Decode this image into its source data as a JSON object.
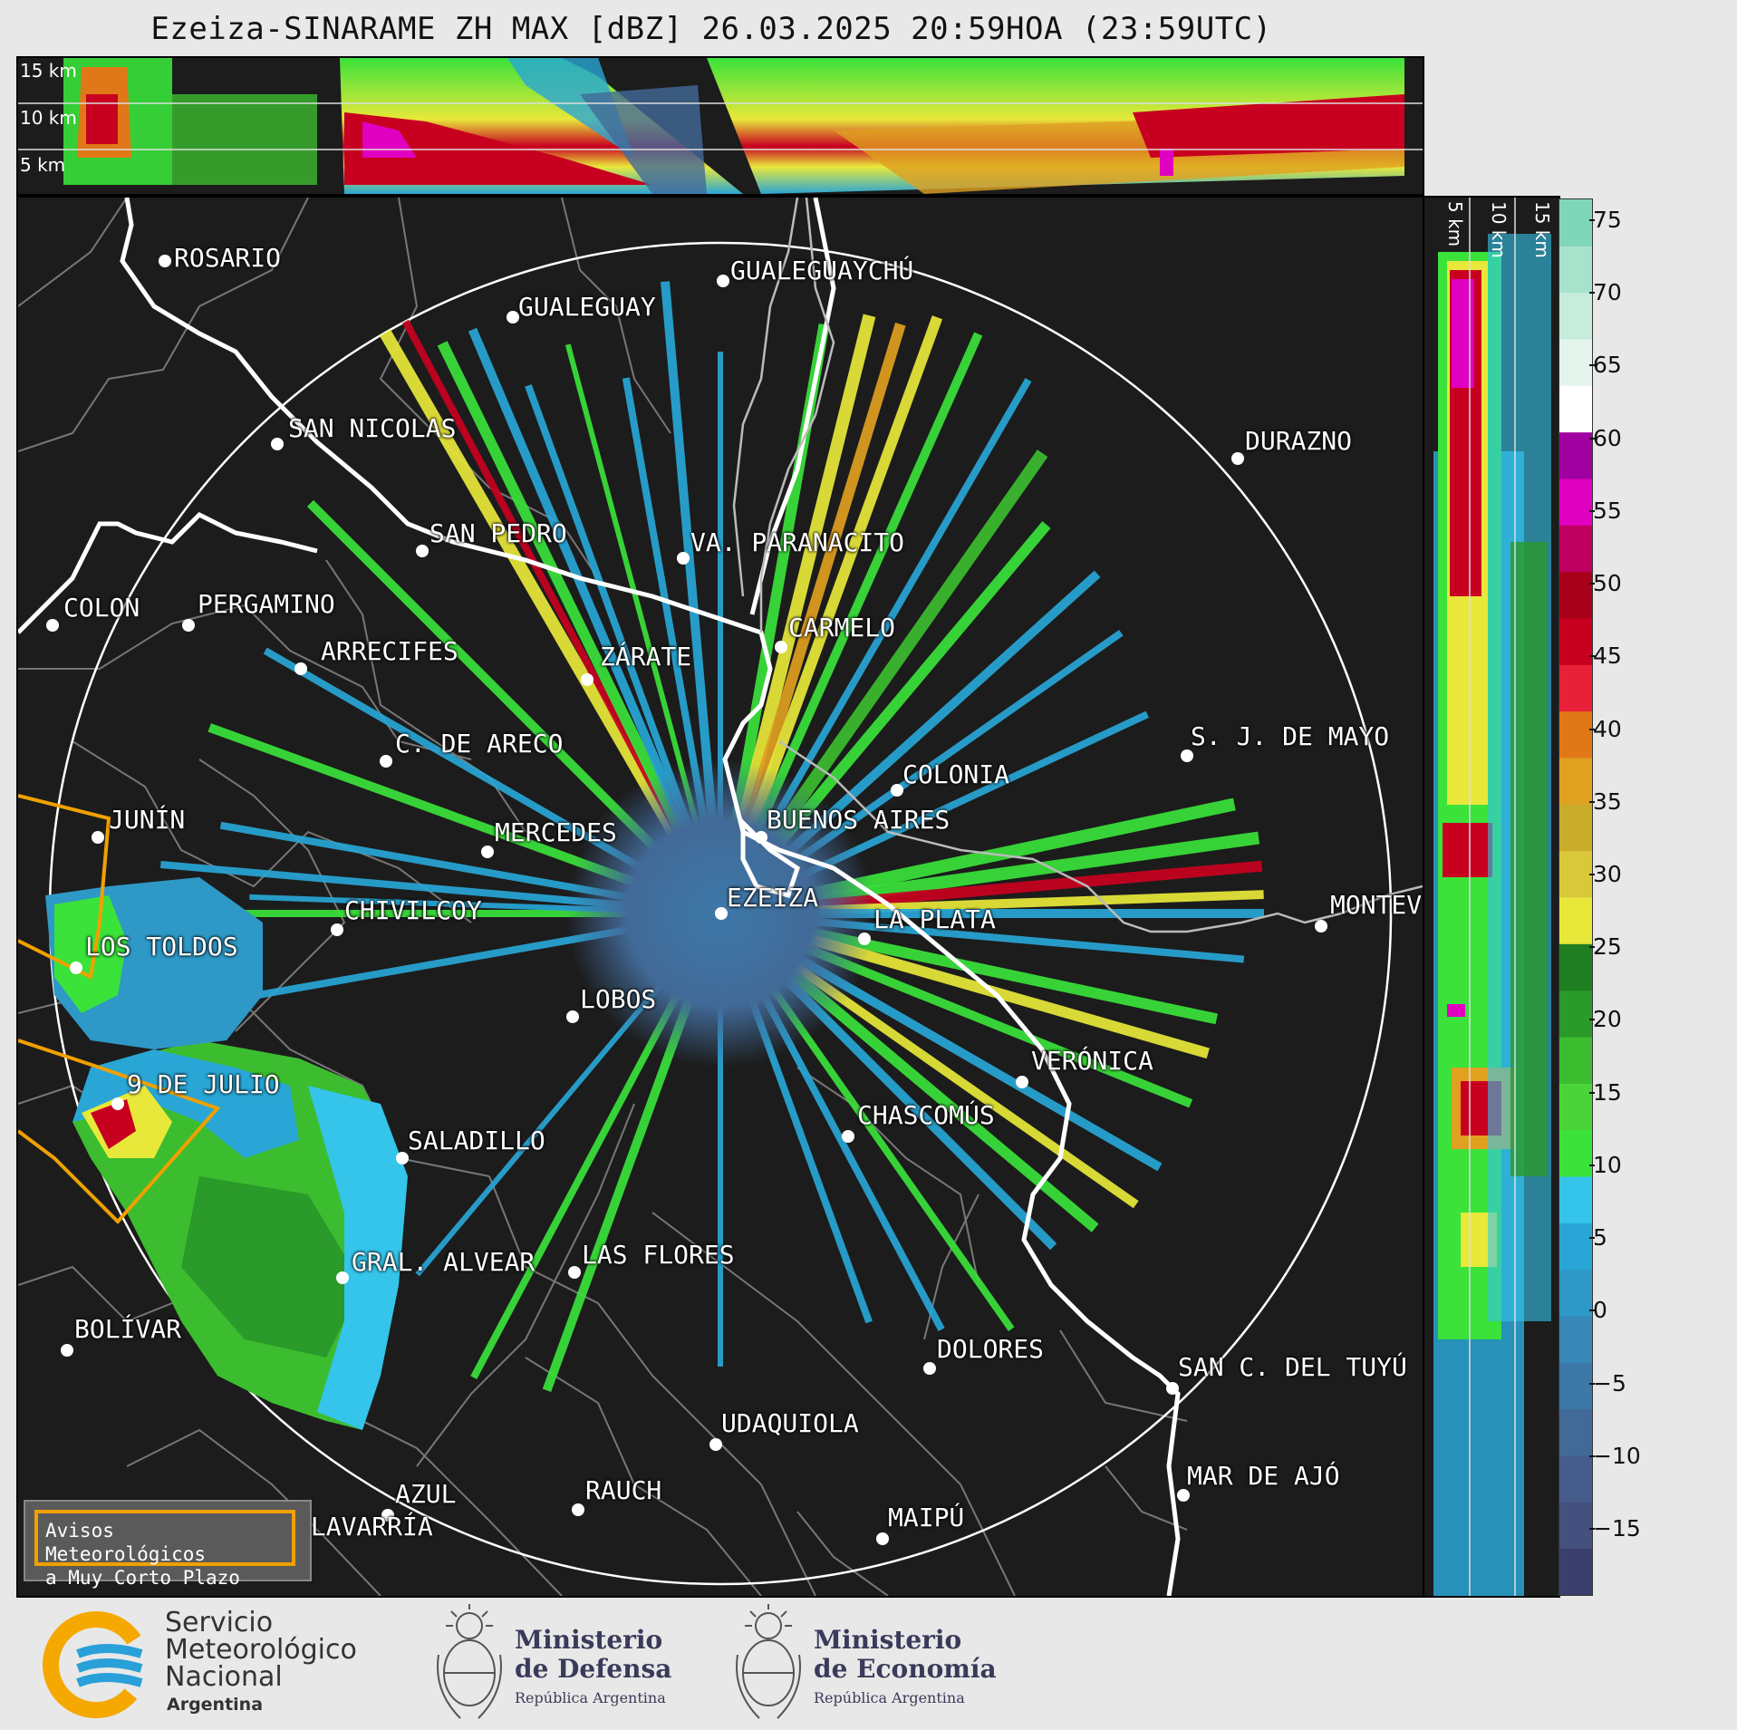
{
  "title": "Ezeiza-SINARAME ZH MAX [dBZ] 26.03.2025 20:59HOA (23:59UTC)",
  "height_labels": [
    "15 km",
    "10 km",
    "5 km"
  ],
  "colorbar": {
    "label_unit": "dBZ",
    "ticks": [
      "75",
      "70",
      "65",
      "60",
      "55",
      "50",
      "45",
      "40",
      "35",
      "30",
      "25",
      "20",
      "15",
      "10",
      "5",
      "0",
      "−5",
      "−10",
      "−15"
    ],
    "colors": [
      "#3b3f6e",
      "#44507e",
      "#465d8b",
      "#426a98",
      "#3c78a8",
      "#3788b6",
      "#2e98c6",
      "#29a6d6",
      "#35c4ea",
      "#3ae23a",
      "#4ad43a",
      "#3cbd2f",
      "#2a9a2a",
      "#1f7d22",
      "#e8e83a",
      "#d8c83a",
      "#c8ac2a",
      "#e0a020",
      "#e07818",
      "#e82038",
      "#c80020",
      "#a80018",
      "#c00060",
      "#e000c0",
      "#a000a0",
      "#ffffff",
      "#e4f4ec",
      "#c8ecdc",
      "#a8e2cc",
      "#80d6b8"
    ]
  },
  "cities": [
    {
      "name": "ROSARIO"
    },
    {
      "name": "GUALEGUAYCHÚ"
    },
    {
      "name": "GUALEGUAY"
    },
    {
      "name": "SAN NICOLAS"
    },
    {
      "name": "DURAZNO"
    },
    {
      "name": "SAN PEDRO"
    },
    {
      "name": "VA. PARANACITO"
    },
    {
      "name": "COLON"
    },
    {
      "name": "PERGAMINO"
    },
    {
      "name": "CARMELO"
    },
    {
      "name": "ARRECIFES"
    },
    {
      "name": "ZÁRATE"
    },
    {
      "name": "S. J. DE MAYO"
    },
    {
      "name": "C. DE ARECO"
    },
    {
      "name": "COLONIA"
    },
    {
      "name": "JUNÍN"
    },
    {
      "name": "BUENOS AIRES"
    },
    {
      "name": "MERCEDES"
    },
    {
      "name": "EZEIZA"
    },
    {
      "name": "MONTEVIDEO"
    },
    {
      "name": "CHIVILCOY"
    },
    {
      "name": "LA PLATA"
    },
    {
      "name": "LOS TOLDOS"
    },
    {
      "name": "LOBOS"
    },
    {
      "name": "VERÓNICA"
    },
    {
      "name": "9 DE JULIO"
    },
    {
      "name": "CHASCOMÚS"
    },
    {
      "name": "SALADILLO"
    },
    {
      "name": "GRAL. ALVEAR"
    },
    {
      "name": "LAS FLORES"
    },
    {
      "name": "BOLÍVAR"
    },
    {
      "name": "DOLORES"
    },
    {
      "name": "SAN C. DEL TUYÚ"
    },
    {
      "name": "UDAQUIOLA"
    },
    {
      "name": "AZUL"
    },
    {
      "name": "RAUCH"
    },
    {
      "name": "MAR DE AJÓ"
    },
    {
      "name": "OLAVARRÍA"
    },
    {
      "name": "MAIPÚ"
    }
  ],
  "warning_box": {
    "line1": "Avisos Meteorológicos",
    "line2": "a Muy Corto Plazo"
  },
  "logos": {
    "smn": {
      "line1": "Servicio",
      "line2": "Meteorológico",
      "line3": "Nacional",
      "line4": "Argentina"
    },
    "defensa": {
      "line1": "Ministerio",
      "line2": "de Defensa",
      "line3": "República Argentina"
    },
    "economia": {
      "line1": "Ministerio",
      "line2": "de Economía",
      "line3": "República Argentina"
    }
  }
}
